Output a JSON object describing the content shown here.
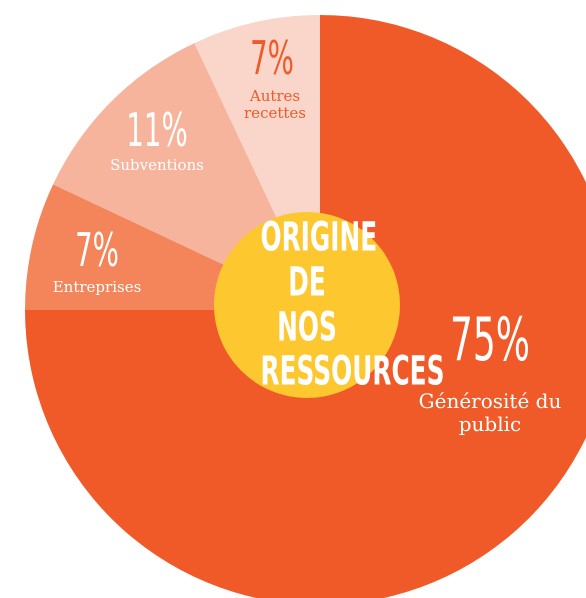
{
  "chart_data": {
    "type": "pie",
    "title": "ORIGINE DE NOS RESSOURCES",
    "categories": [
      "Générosité du public",
      "Entreprises",
      "Subventions",
      "Autres recettes"
    ],
    "values": [
      75,
      7,
      11,
      7
    ],
    "value_labels": [
      "75%",
      "7%",
      "11%",
      "7%"
    ],
    "colors": [
      "#f05a28",
      "#f4845a",
      "#f7b49c",
      "#f9d5ca"
    ],
    "label_colors": [
      "#ffffff",
      "#ffffff",
      "#ffffff",
      "#f05a28"
    ],
    "center_color": "#fdc82f"
  }
}
